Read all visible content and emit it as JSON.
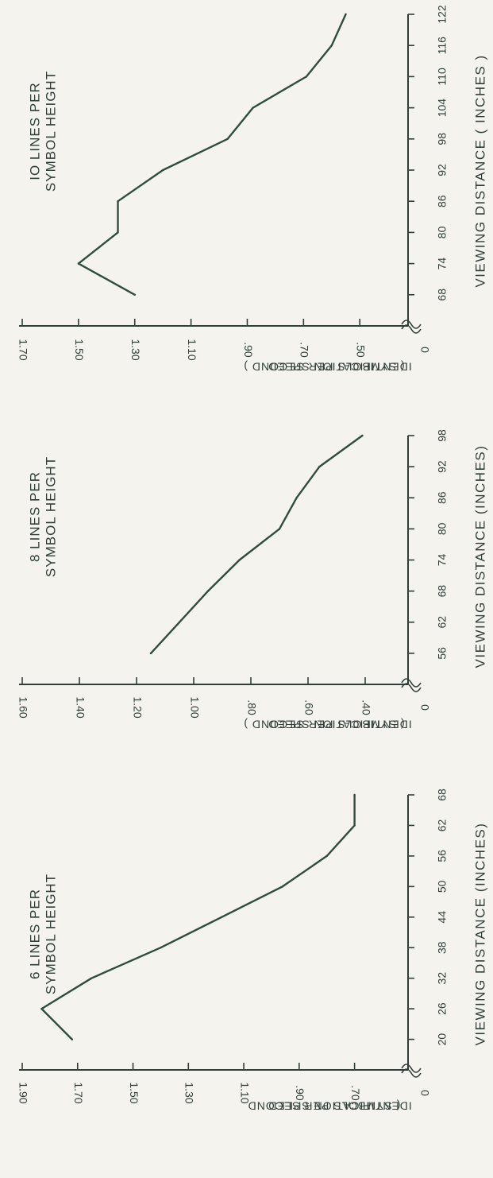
{
  "chart_data": [
    {
      "type": "line",
      "title": [
        "6 LINES PER",
        "SYMBOL HEIGHT"
      ],
      "xlabel": "VIEWING DISTANCE (INCHES)",
      "ylabel": [
        "IDENTIFICATION SPEED",
        "( SYMBOLS PER SECOND"
      ],
      "xlim": [
        14,
        68
      ],
      "ylim": [
        0.61,
        1.9
      ],
      "x_ticks": [
        "20",
        "26",
        "32",
        "38",
        "44",
        "50",
        "56",
        "62",
        "68"
      ],
      "y_ticks": [
        "1.90",
        "1.70",
        "1.50",
        "1.30",
        "1.10",
        ".90",
        ".70"
      ],
      "y_zero_label": "0",
      "series": [
        {
          "x": [
            20,
            26,
            32,
            38,
            44,
            50,
            56,
            62,
            68
          ],
          "y": [
            1.72,
            1.83,
            1.65,
            1.4,
            1.18,
            0.96,
            0.8,
            0.7,
            0.7
          ]
        }
      ]
    },
    {
      "type": "line",
      "title": [
        "8 LINES PER",
        "SYMBOL HEIGHT"
      ],
      "xlabel": "VIEWING DISTANCE (INCHES)",
      "ylabel": [
        "IDENTIFICATION SPEED",
        "( SYMBOLS PER SECOND )"
      ],
      "xlim": [
        50,
        98
      ],
      "ylim": [
        0.35,
        1.6
      ],
      "x_ticks": [
        "56",
        "62",
        "68",
        "74",
        "80",
        "86",
        "92",
        "98"
      ],
      "y_ticks": [
        "1.60",
        "1.40",
        "1.20",
        "1.00",
        ".80",
        ".60",
        ".40"
      ],
      "y_zero_label": "0",
      "series": [
        {
          "x": [
            56,
            62,
            68,
            74,
            80,
            86,
            92,
            98
          ],
          "y": [
            1.15,
            1.05,
            0.95,
            0.84,
            0.7,
            0.64,
            0.56,
            0.41
          ]
        }
      ]
    },
    {
      "type": "line",
      "title": [
        "IO LINES PER",
        "SYMBOL HEIGHT"
      ],
      "xlabel": "VIEWING DISTANCE ( INCHES )",
      "ylabel": [
        "IDENTIFICATION SPEED",
        "( SYMBOLS PER SECOND )"
      ],
      "xlim": [
        62,
        122
      ],
      "ylim": [
        0.43,
        1.7
      ],
      "x_ticks": [
        "68",
        "74",
        "80",
        "86",
        "92",
        "98",
        "104",
        "110",
        "116",
        "122"
      ],
      "y_ticks": [
        "1.70",
        "1.50",
        "1.30",
        "1.10",
        ".90",
        ".70",
        ".50"
      ],
      "y_zero_label": "0",
      "series": [
        {
          "x": [
            68,
            74,
            80,
            86,
            92,
            98,
            104,
            110,
            116,
            122
          ],
          "y": [
            1.3,
            1.5,
            1.36,
            1.36,
            1.2,
            0.97,
            0.88,
            0.69,
            0.6,
            0.55
          ]
        }
      ]
    }
  ],
  "colors": {
    "ink": "#2f3f38",
    "line": "#2f4d3d",
    "paper": "#f4f3ee"
  }
}
